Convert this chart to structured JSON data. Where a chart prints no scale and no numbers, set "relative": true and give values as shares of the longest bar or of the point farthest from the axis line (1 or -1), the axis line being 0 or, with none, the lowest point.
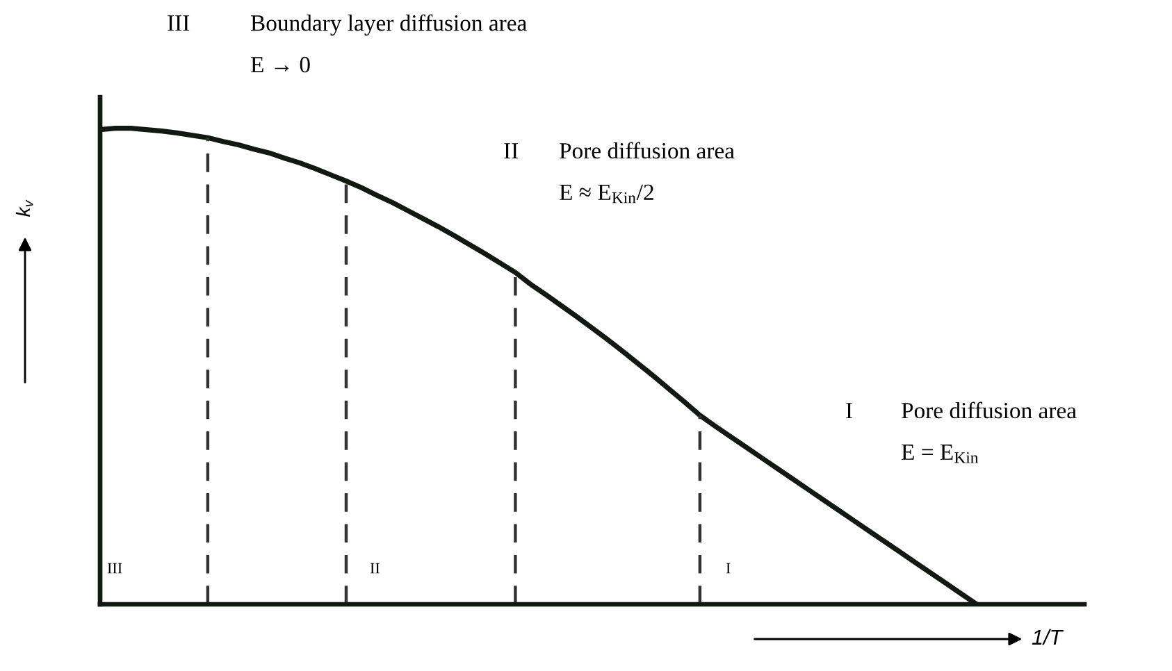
{
  "chart_data": {
    "type": "line",
    "relative": true,
    "xlabel": "1/T",
    "ylabel": "k$_{v}$",
    "categories": [
      null,
      null,
      null,
      null,
      null,
      null,
      null,
      null,
      null,
      null,
      null,
      null,
      null,
      null,
      null,
      null,
      null,
      null,
      null,
      null,
      null,
      null,
      null,
      null,
      null,
      null,
      null,
      null,
      null,
      null,
      null,
      null,
      null,
      null,
      null,
      null,
      null,
      null,
      null,
      null,
      null,
      null,
      null,
      null,
      null,
      null,
      null,
      null,
      null,
      null,
      null,
      null,
      null,
      null,
      null,
      null,
      null,
      null,
      null,
      null,
      null,
      null,
      null,
      null,
      null
    ],
    "series": [
      {
        "color": "#111a11",
        "line_style": "solid",
        "values": [
          0.997,
          1.0,
          1.0,
          0.997,
          0.994,
          0.99,
          0.985,
          0.98,
          0.972,
          0.965,
          0.956,
          0.948,
          0.937,
          0.927,
          0.915,
          0.902,
          0.889,
          0.875,
          0.859,
          0.844,
          0.827,
          0.81,
          0.793,
          0.775,
          0.756,
          0.737,
          0.717,
          0.697,
          0.672,
          0.65,
          0.627,
          0.604,
          0.58,
          0.556,
          0.531,
          0.505,
          0.479,
          0.452,
          0.425,
          0.397,
          0.374,
          0.352,
          0.33,
          0.308,
          0.286,
          0.264,
          0.242,
          0.22,
          0.198,
          0.176,
          0.154,
          0.132,
          0.11,
          0.088,
          0.066,
          0.044,
          0.022,
          0.0,
          null,
          null,
          null,
          null,
          null,
          null,
          null
        ]
      }
    ],
    "annotations": [
      "III",
      "Boundary layer diffusion area",
      "E → 0",
      "II",
      "Pore diffusion area",
      "E ≈ E$_{Kin}$/2",
      "I",
      "Pore diffusion area",
      "E = E$_{Kin}$",
      "III",
      "II",
      "I"
    ]
  }
}
